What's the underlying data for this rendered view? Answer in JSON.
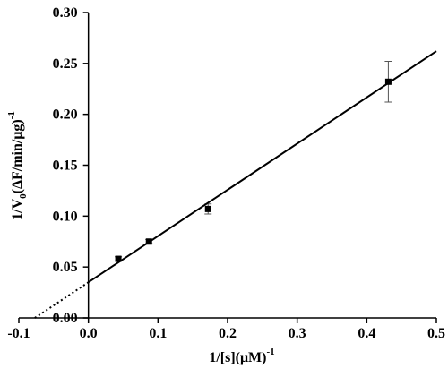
{
  "chart_data": {
    "type": "scatter",
    "xlabel": [
      "1/[s](μM)",
      "-1"
    ],
    "ylabel": [
      "1/V",
      "0",
      "(ΔF/min/μg)",
      "-1"
    ],
    "xlim": [
      -0.1,
      0.5
    ],
    "xticks": [
      -0.1,
      {
        "value": 0,
        "label": "0.0"
      },
      0.1,
      0.2,
      0.3,
      0.4,
      0.5
    ],
    "ylim": [
      0,
      0.3
    ],
    "yticks": [
      {
        "value": 0,
        "label": "0.00"
      },
      0.05,
      {
        "value": 0.1,
        "label": "0.10"
      },
      0.15,
      {
        "value": 0.2,
        "label": "0.20"
      },
      0.25,
      {
        "value": 0.3,
        "label": "0.30"
      }
    ],
    "y_axis_at": 0,
    "series": [
      {
        "style": "markers",
        "color": "#000000",
        "x": [
          0.043,
          0.087,
          0.172,
          0.431
        ],
        "values": [
          0.058,
          0.075,
          0.107,
          0.232
        ],
        "errors": [
          0.002,
          0.002,
          0.005,
          0.02
        ]
      },
      {
        "style": "solid",
        "color": "#000000",
        "x": [
          0,
          0.5
        ],
        "values": [
          0.035,
          0.262
        ]
      },
      {
        "style": "dotted",
        "color": "#000000",
        "x": [
          -0.077,
          0
        ],
        "values": [
          0,
          0.035
        ]
      }
    ]
  }
}
